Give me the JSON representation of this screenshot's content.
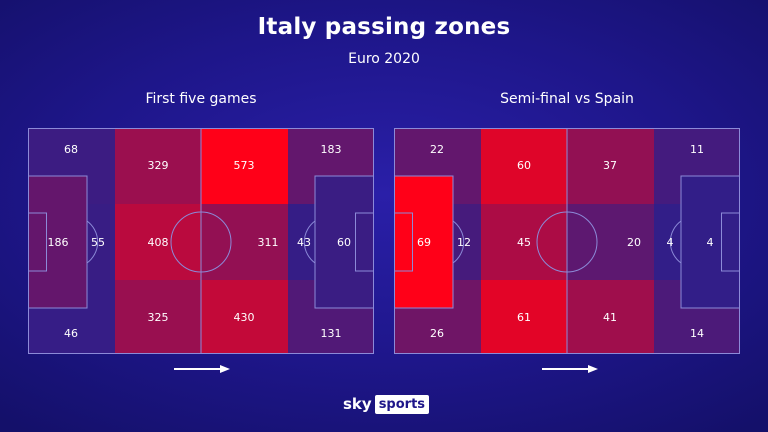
{
  "header": {
    "title": "Italy passing zones",
    "subtitle": "Euro 2020"
  },
  "logo": {
    "sky": "sky",
    "sports": "sports"
  },
  "colors": {
    "low": "#2a1f8c",
    "high": "#ff0018",
    "line": "#8c8ad8"
  },
  "chart_data": [
    {
      "type": "heatmap",
      "title": "First five games",
      "max": 573,
      "zones": {
        "top_corner_left": 68,
        "top_left": 329,
        "top_right": 573,
        "top_corner_right": 183,
        "mid_left": 408,
        "mid_right": 311,
        "bottom_corner_left": 46,
        "bottom_left": 325,
        "bottom_right": 430,
        "bottom_corner_right": 131,
        "box_left": 186,
        "box_edge_left": 55,
        "box_edge_right": 43,
        "box_right": 60
      }
    },
    {
      "type": "heatmap",
      "title": "Semi-final vs Spain",
      "max": 69,
      "zones": {
        "top_corner_left": 22,
        "top_left": 60,
        "top_right": 37,
        "top_corner_right": 11,
        "mid_left": 45,
        "mid_right": 20,
        "bottom_corner_left": 26,
        "bottom_left": 61,
        "bottom_right": 41,
        "bottom_corner_right": 14,
        "box_left": 69,
        "box_edge_left": 12,
        "box_edge_right": 4,
        "box_right": 4
      }
    }
  ]
}
